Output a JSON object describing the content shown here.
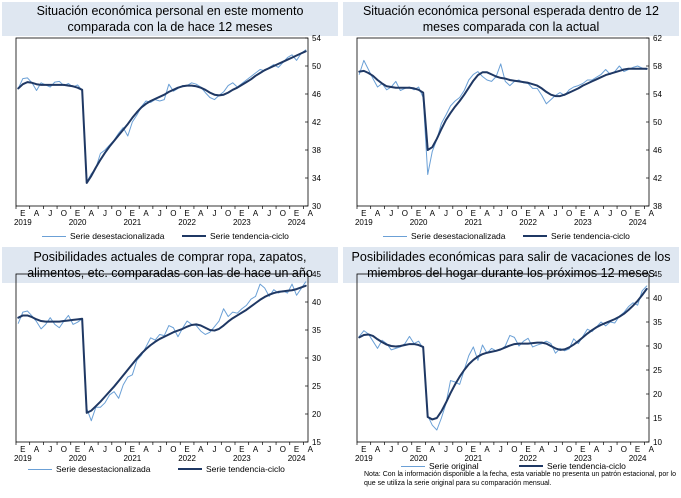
{
  "chart_data": [
    {
      "type": "line",
      "title": "Situación económica personal en este momento comparada con la de hace 12 meses",
      "ylim": [
        30,
        54
      ],
      "yticks": [
        30,
        34,
        38,
        42,
        46,
        50,
        54
      ],
      "grid": false,
      "month_letters": [
        "E",
        "A",
        "J",
        "O",
        "E",
        "A",
        "J",
        "O",
        "E",
        "A",
        "J",
        "O",
        "E",
        "A",
        "J",
        "O",
        "E",
        "A",
        "J",
        "O",
        "E",
        "A"
      ],
      "year_labels": [
        "2019",
        "2020",
        "2021",
        "2022",
        "2023",
        "2024"
      ],
      "x": [
        "2019-01",
        "2019-02",
        "2019-03",
        "2019-04",
        "2019-05",
        "2019-06",
        "2019-07",
        "2019-08",
        "2019-09",
        "2019-10",
        "2019-11",
        "2019-12",
        "2020-01",
        "2020-02",
        "2020-03",
        "2020-04",
        "2020-05",
        "2020-06",
        "2020-07",
        "2020-08",
        "2020-09",
        "2020-10",
        "2020-11",
        "2020-12",
        "2021-01",
        "2021-02",
        "2021-03",
        "2021-04",
        "2021-05",
        "2021-06",
        "2021-07",
        "2021-08",
        "2021-09",
        "2021-10",
        "2021-11",
        "2021-12",
        "2022-01",
        "2022-02",
        "2022-03",
        "2022-04",
        "2022-05",
        "2022-06",
        "2022-07",
        "2022-08",
        "2022-09",
        "2022-10",
        "2022-11",
        "2022-12",
        "2023-01",
        "2023-02",
        "2023-03",
        "2023-04",
        "2023-05",
        "2023-06",
        "2023-07",
        "2023-08",
        "2023-09",
        "2023-10",
        "2023-11",
        "2023-12",
        "2024-01",
        "2024-02",
        "2024-03",
        "2024-04"
      ],
      "series": [
        {
          "name": "Serie desestacionalizada",
          "color": "#6ba0d6",
          "values": [
            46.8,
            48.2,
            48.3,
            47.6,
            46.5,
            47.6,
            47.3,
            47.0,
            47.7,
            47.8,
            47.2,
            47.5,
            47.0,
            47.3,
            46.5,
            33.4,
            34.6,
            35.4,
            37.5,
            38.0,
            38.7,
            39.4,
            40.4,
            41.2,
            40.0,
            42.0,
            43.0,
            44.2,
            45.0,
            44.8,
            45.2,
            45.0,
            45.2,
            47.4,
            46.4,
            46.8,
            47.2,
            47.2,
            47.6,
            47.4,
            47.0,
            46.2,
            45.5,
            45.2,
            45.8,
            46.3,
            47.2,
            47.6,
            47.0,
            47.5,
            48.0,
            48.5,
            49.0,
            49.5,
            49.3,
            49.8,
            50.2,
            49.8,
            50.5,
            51.2,
            51.6,
            50.8,
            51.8,
            52.3
          ]
        },
        {
          "name": "Serie tendencia-ciclo",
          "color": "#1f3864",
          "values": [
            46.8,
            47.4,
            47.7,
            47.6,
            47.4,
            47.3,
            47.3,
            47.3,
            47.3,
            47.3,
            47.3,
            47.2,
            47.1,
            46.9,
            46.6,
            33.3,
            34.3,
            35.5,
            36.6,
            37.6,
            38.5,
            39.3,
            40.1,
            40.9,
            41.7,
            42.6,
            43.4,
            44.1,
            44.6,
            45.0,
            45.3,
            45.6,
            45.9,
            46.3,
            46.6,
            46.9,
            47.1,
            47.2,
            47.2,
            47.1,
            46.9,
            46.6,
            46.2,
            45.9,
            45.8,
            45.9,
            46.2,
            46.6,
            46.9,
            47.3,
            47.7,
            48.1,
            48.6,
            49.0,
            49.4,
            49.7,
            50.0,
            50.3,
            50.6,
            50.9,
            51.2,
            51.5,
            51.8,
            52.1
          ]
        }
      ],
      "legend": [
        "Serie desestacionalizada",
        "Serie tendencia-ciclo"
      ]
    },
    {
      "type": "line",
      "title": "Situación económica personal esperada dentro de 12 meses comparada con la actual",
      "ylim": [
        38,
        62
      ],
      "yticks": [
        38,
        42,
        46,
        50,
        54,
        58,
        62
      ],
      "grid": false,
      "month_letters": [
        "E",
        "A",
        "J",
        "O",
        "E",
        "A",
        "J",
        "O",
        "E",
        "A",
        "J",
        "O",
        "E",
        "A",
        "J",
        "O",
        "E",
        "A",
        "J",
        "O",
        "E",
        "A"
      ],
      "year_labels": [
        "2019",
        "2020",
        "2021",
        "2022",
        "2023",
        "2024"
      ],
      "x": [
        "2019-01",
        "2019-02",
        "2019-03",
        "2019-04",
        "2019-05",
        "2019-06",
        "2019-07",
        "2019-08",
        "2019-09",
        "2019-10",
        "2019-11",
        "2019-12",
        "2020-01",
        "2020-02",
        "2020-03",
        "2020-04",
        "2020-05",
        "2020-06",
        "2020-07",
        "2020-08",
        "2020-09",
        "2020-10",
        "2020-11",
        "2020-12",
        "2021-01",
        "2021-02",
        "2021-03",
        "2021-04",
        "2021-05",
        "2021-06",
        "2021-07",
        "2021-08",
        "2021-09",
        "2021-10",
        "2021-11",
        "2021-12",
        "2022-01",
        "2022-02",
        "2022-03",
        "2022-04",
        "2022-05",
        "2022-06",
        "2022-07",
        "2022-08",
        "2022-09",
        "2022-10",
        "2022-11",
        "2022-12",
        "2023-01",
        "2023-02",
        "2023-03",
        "2023-04",
        "2023-05",
        "2023-06",
        "2023-07",
        "2023-08",
        "2023-09",
        "2023-10",
        "2023-11",
        "2023-12",
        "2024-01",
        "2024-02",
        "2024-03",
        "2024-04"
      ],
      "series": [
        {
          "name": "Serie desestacionalizada",
          "color": "#6ba0d6",
          "values": [
            56.8,
            58.8,
            57.5,
            56.2,
            55.0,
            55.5,
            54.6,
            55.0,
            55.8,
            54.5,
            54.8,
            55.0,
            54.6,
            55.0,
            53.5,
            42.5,
            45.8,
            47.5,
            49.8,
            51.0,
            52.3,
            53.0,
            53.5,
            54.5,
            56.0,
            56.8,
            57.2,
            56.5,
            56.0,
            55.8,
            56.5,
            58.3,
            55.8,
            55.2,
            55.8,
            56.0,
            55.6,
            55.5,
            54.8,
            54.8,
            53.8,
            52.6,
            53.2,
            53.8,
            54.2,
            53.8,
            54.6,
            55.0,
            55.2,
            55.5,
            56.0,
            56.0,
            56.4,
            56.8,
            57.5,
            56.8,
            57.2,
            58.0,
            57.2,
            57.5,
            57.8,
            58.0,
            57.7,
            57.5
          ]
        },
        {
          "name": "Serie tendencia-ciclo",
          "color": "#1f3864",
          "values": [
            57.2,
            57.3,
            57.0,
            56.6,
            56.0,
            55.5,
            55.1,
            55.0,
            54.9,
            54.9,
            54.9,
            54.9,
            54.8,
            54.6,
            54.2,
            46.0,
            46.4,
            47.6,
            49.0,
            50.3,
            51.3,
            52.2,
            53.0,
            53.9,
            54.9,
            55.9,
            56.7,
            57.1,
            57.1,
            56.8,
            56.5,
            56.3,
            56.2,
            56.0,
            55.9,
            55.8,
            55.7,
            55.6,
            55.4,
            55.2,
            54.8,
            54.3,
            53.9,
            53.7,
            53.7,
            53.9,
            54.2,
            54.5,
            54.8,
            55.2,
            55.5,
            55.8,
            56.1,
            56.4,
            56.7,
            56.9,
            57.1,
            57.3,
            57.5,
            57.6,
            57.6,
            57.6,
            57.6,
            57.6
          ]
        }
      ],
      "legend": [
        "Serie desestacionalizada",
        "Serie tendencia-ciclo"
      ]
    },
    {
      "type": "line",
      "title": "Posibilidades actuales de comprar ropa, zapatos, alimentos, etc. comparadas con las de hace un año",
      "ylim": [
        15,
        45
      ],
      "yticks": [
        15,
        20,
        25,
        30,
        35,
        40,
        45
      ],
      "grid": false,
      "month_letters": [
        "E",
        "A",
        "J",
        "O",
        "E",
        "A",
        "J",
        "O",
        "E",
        "A",
        "J",
        "O",
        "E",
        "A",
        "J",
        "O",
        "E",
        "A",
        "J",
        "O",
        "E",
        "A"
      ],
      "year_labels": [
        "2019",
        "2020",
        "2021",
        "2022",
        "2023",
        "2024"
      ],
      "x": [
        "2019-01",
        "2019-02",
        "2019-03",
        "2019-04",
        "2019-05",
        "2019-06",
        "2019-07",
        "2019-08",
        "2019-09",
        "2019-10",
        "2019-11",
        "2019-12",
        "2020-01",
        "2020-02",
        "2020-03",
        "2020-04",
        "2020-05",
        "2020-06",
        "2020-07",
        "2020-08",
        "2020-09",
        "2020-10",
        "2020-11",
        "2020-12",
        "2021-01",
        "2021-02",
        "2021-03",
        "2021-04",
        "2021-05",
        "2021-06",
        "2021-07",
        "2021-08",
        "2021-09",
        "2021-10",
        "2021-11",
        "2021-12",
        "2022-01",
        "2022-02",
        "2022-03",
        "2022-04",
        "2022-05",
        "2022-06",
        "2022-07",
        "2022-08",
        "2022-09",
        "2022-10",
        "2022-11",
        "2022-12",
        "2023-01",
        "2023-02",
        "2023-03",
        "2023-04",
        "2023-05",
        "2023-06",
        "2023-07",
        "2023-08",
        "2023-09",
        "2023-10",
        "2023-11",
        "2023-12",
        "2024-01",
        "2024-02",
        "2024-03",
        "2024-04"
      ],
      "series": [
        {
          "name": "Serie desestacionalizada",
          "color": "#6ba0d6",
          "values": [
            36.2,
            38.2,
            38.4,
            37.5,
            36.5,
            35.2,
            36.0,
            37.2,
            36.0,
            35.4,
            36.6,
            37.6,
            36.0,
            36.4,
            37.0,
            21.0,
            18.8,
            21.2,
            21.2,
            22.0,
            23.4,
            24.0,
            22.8,
            25.2,
            26.6,
            27.0,
            29.6,
            30.5,
            32.0,
            33.6,
            33.2,
            34.2,
            34.0,
            35.8,
            35.4,
            33.8,
            35.3,
            36.6,
            36.0,
            35.8,
            34.8,
            34.2,
            34.6,
            35.6,
            36.6,
            38.8,
            37.4,
            38.2,
            38.0,
            38.8,
            39.4,
            40.5,
            41.0,
            43.2,
            42.5,
            41.0,
            42.2,
            41.6,
            42.0,
            41.6,
            43.2,
            41.2,
            42.4,
            43.6
          ]
        },
        {
          "name": "Serie tendencia-ciclo",
          "color": "#1f3864",
          "values": [
            37.2,
            37.6,
            37.6,
            37.3,
            36.9,
            36.6,
            36.5,
            36.5,
            36.5,
            36.5,
            36.6,
            36.7,
            36.8,
            36.9,
            37.0,
            20.2,
            20.6,
            21.4,
            22.2,
            23.1,
            24.0,
            24.9,
            25.9,
            26.9,
            27.9,
            28.9,
            29.9,
            30.8,
            31.6,
            32.3,
            32.9,
            33.4,
            33.8,
            34.2,
            34.6,
            34.9,
            35.2,
            35.6,
            35.9,
            36.0,
            35.8,
            35.4,
            35.0,
            34.9,
            35.2,
            35.8,
            36.5,
            37.1,
            37.6,
            38.1,
            38.6,
            39.2,
            39.8,
            40.4,
            40.9,
            41.3,
            41.6,
            41.8,
            41.9,
            42.0,
            42.1,
            42.3,
            42.6,
            42.9
          ]
        }
      ],
      "legend": [
        "Serie desestacionalizada",
        "Serie tendencia-ciclo"
      ]
    },
    {
      "type": "line",
      "title": "Posibilidades económicas para salir de vacaciones de los miembros del hogar durante los próximos 12 meses",
      "ylim": [
        10,
        45
      ],
      "yticks": [
        10,
        15,
        20,
        25,
        30,
        35,
        40,
        45
      ],
      "grid": false,
      "month_letters": [
        "E",
        "A",
        "J",
        "O",
        "E",
        "A",
        "J",
        "O",
        "E",
        "A",
        "J",
        "O",
        "E",
        "A",
        "J",
        "O",
        "E",
        "A",
        "J",
        "O",
        "E",
        "A"
      ],
      "year_labels": [
        "2019",
        "2020",
        "2021",
        "2022",
        "2023",
        "2024"
      ],
      "x": [
        "2019-01",
        "2019-02",
        "2019-03",
        "2019-04",
        "2019-05",
        "2019-06",
        "2019-07",
        "2019-08",
        "2019-09",
        "2019-10",
        "2019-11",
        "2019-12",
        "2020-01",
        "2020-02",
        "2020-03",
        "2020-04",
        "2020-05",
        "2020-06",
        "2020-07",
        "2020-08",
        "2020-09",
        "2020-10",
        "2020-11",
        "2020-12",
        "2021-01",
        "2021-02",
        "2021-03",
        "2021-04",
        "2021-05",
        "2021-06",
        "2021-07",
        "2021-08",
        "2021-09",
        "2021-10",
        "2021-11",
        "2021-12",
        "2022-01",
        "2022-02",
        "2022-03",
        "2022-04",
        "2022-05",
        "2022-06",
        "2022-07",
        "2022-08",
        "2022-09",
        "2022-10",
        "2022-11",
        "2022-12",
        "2023-01",
        "2023-02",
        "2023-03",
        "2023-04",
        "2023-05",
        "2023-06",
        "2023-07",
        "2023-08",
        "2023-09",
        "2023-10",
        "2023-11",
        "2023-12",
        "2024-01",
        "2024-02",
        "2024-03",
        "2024-04"
      ],
      "series": [
        {
          "name": "Serie original",
          "color": "#6ba0d6",
          "values": [
            32.0,
            33.2,
            32.5,
            31.0,
            29.5,
            31.2,
            30.5,
            29.2,
            29.5,
            29.8,
            30.5,
            32.0,
            30.5,
            31.0,
            29.5,
            15.5,
            13.5,
            12.5,
            15.0,
            18.0,
            22.8,
            22.5,
            22.0,
            25.0,
            28.0,
            29.8,
            27.0,
            30.2,
            28.5,
            29.5,
            29.0,
            29.2,
            30.0,
            32.2,
            31.8,
            30.0,
            31.0,
            31.6,
            29.8,
            30.2,
            30.5,
            31.0,
            30.5,
            28.5,
            29.5,
            29.0,
            29.4,
            31.5,
            30.5,
            32.0,
            33.5,
            33.0,
            34.0,
            35.0,
            34.2,
            35.0,
            34.8,
            36.2,
            37.0,
            38.2,
            39.0,
            38.5,
            41.5,
            42.5
          ]
        },
        {
          "name": "Serie tendencia-ciclo",
          "color": "#1f3864",
          "values": [
            31.8,
            32.3,
            32.4,
            32.1,
            31.4,
            30.8,
            30.3,
            30.0,
            29.9,
            30.0,
            30.2,
            30.4,
            30.4,
            30.2,
            29.8,
            15.2,
            14.7,
            15.0,
            16.4,
            18.2,
            20.2,
            22.0,
            23.6,
            25.0,
            26.2,
            27.1,
            27.8,
            28.3,
            28.6,
            28.8,
            29.0,
            29.3,
            29.7,
            30.1,
            30.4,
            30.5,
            30.5,
            30.5,
            30.6,
            30.7,
            30.7,
            30.5,
            30.0,
            29.5,
            29.2,
            29.3,
            29.7,
            30.3,
            31.0,
            31.8,
            32.6,
            33.3,
            33.9,
            34.4,
            34.8,
            35.2,
            35.6,
            36.1,
            36.7,
            37.5,
            38.4,
            39.4,
            40.6,
            41.9
          ]
        }
      ],
      "legend": [
        "Serie original",
        "Serie tendencia-ciclo"
      ]
    }
  ],
  "note": "Nota: Con la información disponible a la fecha, esta variable no presenta un patrón estacional, por lo que se utiliza la serie original para su comparación mensual."
}
